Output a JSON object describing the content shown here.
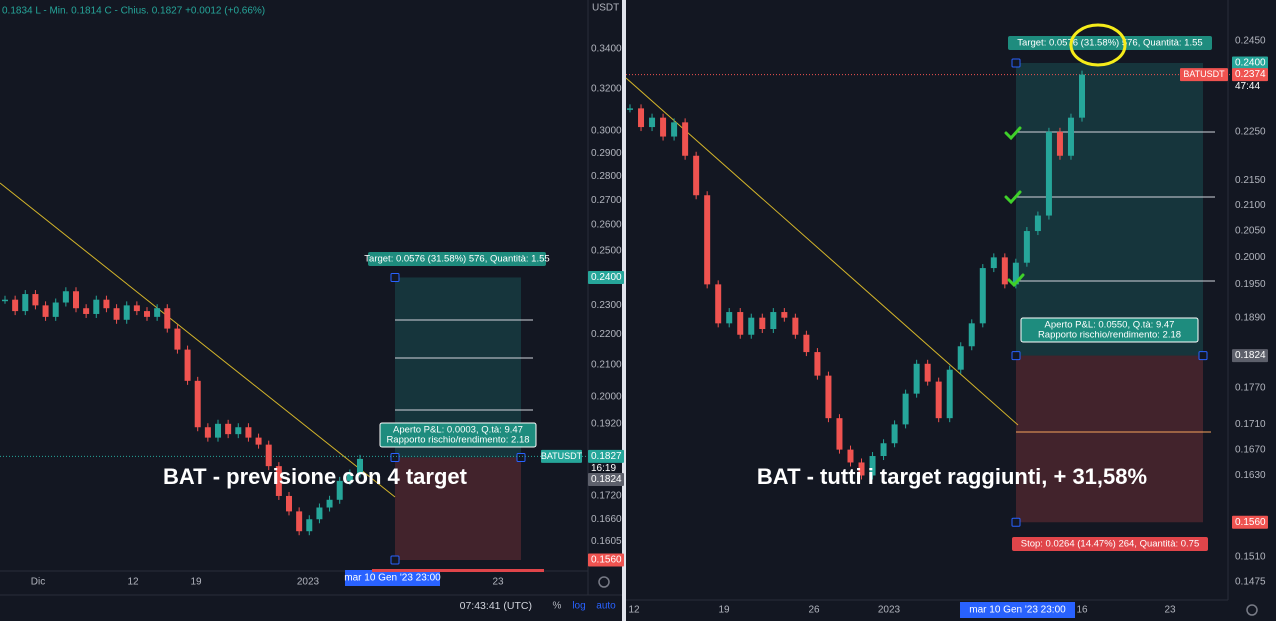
{
  "panels": [
    {
      "header": "0.1834  L - Min. 0.1814  C - Chius. 0.1827  +0.0012 (+0.66%)",
      "currency": "USDT",
      "price_ticks": [
        {
          "value": 0.34,
          "label": "0.3400"
        },
        {
          "value": 0.32,
          "label": "0.3200"
        },
        {
          "value": 0.3,
          "label": "0.3000"
        },
        {
          "value": 0.29,
          "label": "0.2900"
        },
        {
          "value": 0.28,
          "label": "0.2800"
        },
        {
          "value": 0.27,
          "label": "0.2700"
        },
        {
          "value": 0.26,
          "label": "0.2600"
        },
        {
          "value": 0.25,
          "label": "0.2500"
        },
        {
          "value": 0.24,
          "label": "0.2400",
          "kind": "target"
        },
        {
          "value": 0.23,
          "label": "0.2300"
        },
        {
          "value": 0.22,
          "label": "0.2200"
        },
        {
          "value": 0.21,
          "label": "0.2100"
        },
        {
          "value": 0.2,
          "label": "0.2000"
        },
        {
          "value": 0.192,
          "label": "0.1920"
        },
        {
          "value": 0.1827,
          "label": "0.1827",
          "kind": "last"
        },
        {
          "value": 0.1824,
          "label": "0.1824",
          "kind": "entry"
        },
        {
          "value": 0.172,
          "label": "0.1720"
        },
        {
          "value": 0.166,
          "label": "0.1660"
        },
        {
          "value": 0.1605,
          "label": "0.1605"
        },
        {
          "value": 0.156,
          "label": "0.1560",
          "kind": "stop"
        }
      ],
      "time_labels": [
        "Dic",
        "12",
        "19",
        "2023",
        "23"
      ],
      "cursor_time": "mar 10 Gen '23   23:00",
      "prices": [
        0.232,
        0.228,
        0.234,
        0.23,
        0.226,
        0.231,
        0.235,
        0.229,
        0.227,
        0.232,
        0.229,
        0.225,
        0.23,
        0.228,
        0.226,
        0.229,
        0.222,
        0.215,
        0.205,
        0.191,
        0.188,
        0.192,
        0.189,
        0.191,
        0.188,
        0.186,
        0.18,
        0.172,
        0.168,
        0.163,
        0.166,
        0.169,
        0.171,
        0.176,
        0.178,
        0.182
      ],
      "target_label": "Target: 0.0576 (31.58%) 576, Quantità: 1.55",
      "pnl_label": "Aperto P&L: 0.0003, Q.tà: 9.47",
      "ratio_label": "Rapporto rischio/rendimento: 2.18",
      "symbol": "BATUSDT",
      "countdown": "16:19",
      "caption": "BAT - previsione con 4 target",
      "footer": {
        "clock": "07:43:41 (UTC)",
        "percent": "%",
        "log": "log",
        "auto": "auto"
      }
    },
    {
      "price_ticks": [
        {
          "value": 0.245,
          "label": "0.2450"
        },
        {
          "value": 0.24,
          "label": "0.2400",
          "kind": "target"
        },
        {
          "value": 0.2374,
          "label": "0.2374",
          "kind": "last"
        },
        {
          "value": 0.225,
          "label": "0.2250"
        },
        {
          "value": 0.215,
          "label": "0.2150"
        },
        {
          "value": 0.21,
          "label": "0.2100"
        },
        {
          "value": 0.205,
          "label": "0.2050"
        },
        {
          "value": 0.2,
          "label": "0.2000"
        },
        {
          "value": 0.195,
          "label": "0.1950"
        },
        {
          "value": 0.189,
          "label": "0.1890"
        },
        {
          "value": 0.1824,
          "label": "0.1824",
          "kind": "entry"
        },
        {
          "value": 0.177,
          "label": "0.1770"
        },
        {
          "value": 0.171,
          "label": "0.1710"
        },
        {
          "value": 0.167,
          "label": "0.1670"
        },
        {
          "value": 0.163,
          "label": "0.1630"
        },
        {
          "value": 0.156,
          "label": "0.1560",
          "kind": "stop"
        },
        {
          "value": 0.151,
          "label": "0.1510"
        },
        {
          "value": 0.1475,
          "label": "0.1475"
        }
      ],
      "time_labels": [
        "12",
        "19",
        "26",
        "2023",
        "16",
        "23"
      ],
      "cursor_time": "mar 10 Gen '23   23:00",
      "prices": [
        0.23,
        0.226,
        0.228,
        0.224,
        0.227,
        0.22,
        0.212,
        0.195,
        0.188,
        0.19,
        0.186,
        0.189,
        0.187,
        0.19,
        0.189,
        0.186,
        0.183,
        0.179,
        0.172,
        0.167,
        0.165,
        0.163,
        0.166,
        0.168,
        0.171,
        0.176,
        0.181,
        0.178,
        0.172,
        0.18,
        0.184,
        0.188,
        0.198,
        0.2,
        0.195,
        0.199,
        0.205,
        0.208,
        0.225,
        0.22,
        0.228,
        0.2374
      ],
      "target_label": "Target: 0.0576 (31.58%) 576, Quantità: 1.55",
      "pnl_label": "Aperto P&L: 0.0550, Q.tà: 9.47",
      "ratio_label": "Rapporto rischio/rendimento: 2.18",
      "symbol": "BATUSDT",
      "countdown": "47:44",
      "stop_label": "Stop: 0.0264 (14.47%) 264, Quantità: 0.75",
      "caption": "BAT - tutti i target raggiunti, + 31,58%"
    }
  ]
}
